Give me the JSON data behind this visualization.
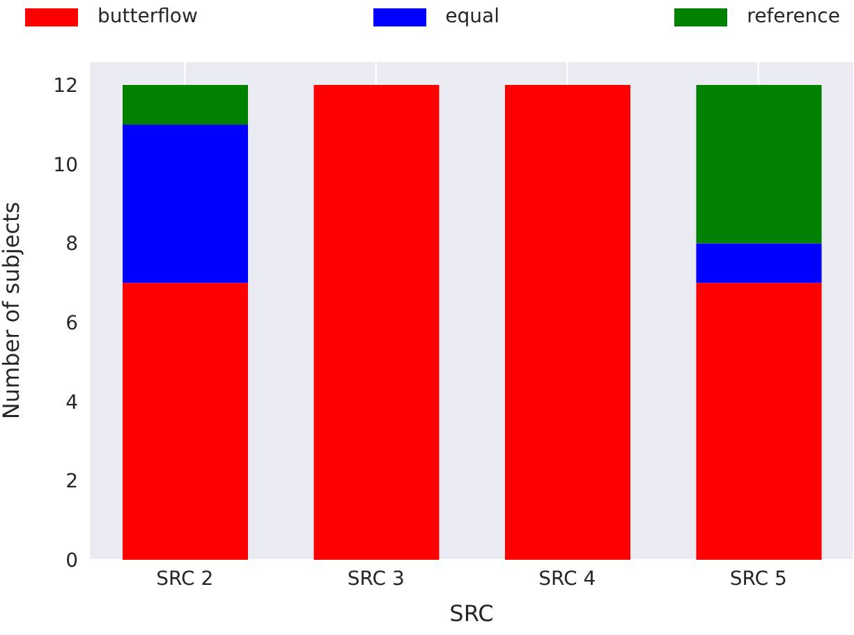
{
  "chart_data": {
    "type": "bar",
    "stacked": true,
    "xlabel": "SRC",
    "ylabel": "Number of subjects",
    "categories": [
      "SRC 2",
      "SRC 3",
      "SRC 4",
      "SRC 5"
    ],
    "series": [
      {
        "name": "butterflow",
        "color": "#ff0000",
        "values": [
          7,
          12,
          12,
          7
        ]
      },
      {
        "name": "equal",
        "color": "#0000ff",
        "values": [
          4,
          0,
          0,
          1
        ]
      },
      {
        "name": "reference",
        "color": "#008000",
        "values": [
          1,
          0,
          0,
          4
        ]
      }
    ],
    "ylim": [
      0,
      12.6
    ],
    "yticks": [
      0,
      2,
      4,
      6,
      8,
      10,
      12
    ],
    "grid": true,
    "legend": "top"
  }
}
